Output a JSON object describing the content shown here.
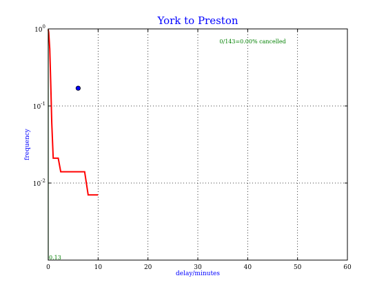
{
  "chart_data": {
    "type": "line",
    "title": "York to Preston",
    "xlabel": "delay/minutes",
    "ylabel": "frequency",
    "xlim": [
      0,
      60
    ],
    "ylim": [
      0.001,
      1
    ],
    "yscale": "log",
    "grid": true,
    "x_ticks": [
      {
        "value": 0,
        "label": "0"
      },
      {
        "value": 10,
        "label": "10"
      },
      {
        "value": 20,
        "label": "20"
      },
      {
        "value": 30,
        "label": "30"
      },
      {
        "value": 40,
        "label": "40"
      },
      {
        "value": 50,
        "label": "50"
      },
      {
        "value": 60,
        "label": "60"
      }
    ],
    "y_ticks": [
      {
        "value": 0.01,
        "base": "10",
        "exp": "-2"
      },
      {
        "value": 0.1,
        "base": "10",
        "exp": "-1"
      },
      {
        "value": 1,
        "base": "10",
        "exp": "0"
      }
    ],
    "series": [
      {
        "color": "#ff0000",
        "x": [
          0,
          0.1,
          0.3,
          0.5,
          0.7,
          1,
          2,
          2.5,
          7.3,
          8,
          10
        ],
        "y": [
          0.98,
          0.9,
          0.55,
          0.2,
          0.06,
          0.021,
          0.021,
          0.014,
          0.014,
          0.007,
          0.007
        ]
      },
      {
        "color": "#008000",
        "x": [
          0,
          0
        ],
        "y": [
          0.001,
          1
        ]
      }
    ],
    "points": [
      {
        "x": 6,
        "y": 0.17,
        "color": "#0000ff"
      }
    ],
    "annotations": {
      "cancelled": "0/143=0.00% cancelled",
      "vline_label": "0.13"
    },
    "colors": {
      "title": "#0000ff",
      "axis_labels": "#0000ff",
      "annotation": "#008000"
    }
  }
}
